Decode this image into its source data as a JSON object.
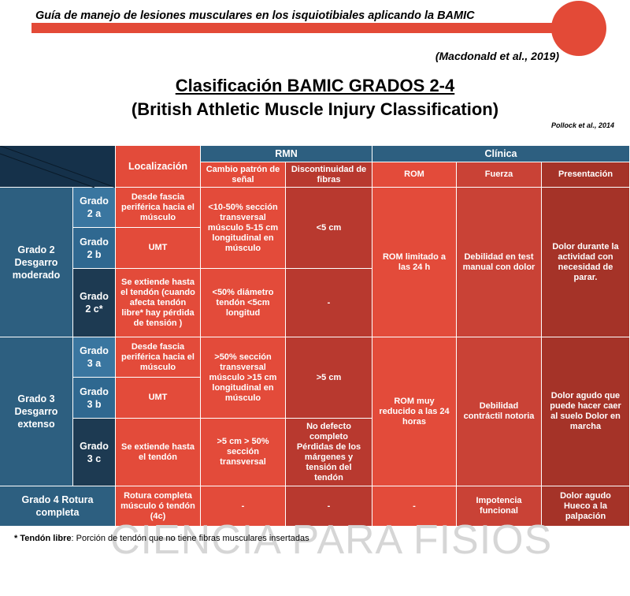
{
  "header": {
    "subtitle": "Guía de manejo de lesiones musculares en los isquiotibiales aplicando la BAMIC",
    "reference": "(Macdonald et al., 2019)",
    "title": "Clasificación BAMIC GRADOS 2-4",
    "title_line2": "(British Athletic Muscle Injury Classification)",
    "source": "Pollock et al., 2014"
  },
  "table": {
    "headers": {
      "location": "Localización",
      "mri": "RMN",
      "mri_change": "Cambio patrón de señal",
      "mri_discontinuity": "Discontinuidad de fibras",
      "clinical": "Clínica",
      "rom": "ROM",
      "strength": "Fuerza",
      "presentation": "Presentación"
    },
    "grade2": {
      "label": "Grado 2 Desgarro moderado",
      "a_label": "Grado 2 a",
      "a_location": "Desde fascia periférica hacia el músculo",
      "ab_mri_change": "<10-50% sección transversal músculo 5-15 cm longitudinal en músculo",
      "ab_mri_discontinuity": "<5 cm",
      "b_label": "Grado 2 b",
      "b_location": "UMT",
      "c_label": "Grado 2 c*",
      "c_location": "Se extiende hasta el tendón (cuando afecta tendón libre* hay pérdida de tensión )",
      "c_mri_change": "<50% diámetro tendón <5cm longitud",
      "c_mri_discontinuity": "-",
      "rom": "ROM limitado a las 24 h",
      "strength": "Debilidad en test manual con dolor",
      "presentation": "Dolor durante la actividad con necesidad de parar."
    },
    "grade3": {
      "label": "Grado 3 Desgarro extenso",
      "a_label": "Grado 3 a",
      "a_location": "Desde fascia periférica hacia el músculo",
      "ab_mri_change": ">50% sección transversal músculo >15 cm longitudinal en músculo",
      "ab_mri_discontinuity": ">5 cm",
      "b_label": "Grado 3 b",
      "b_location": "UMT",
      "c_label": "Grado 3 c",
      "c_location": "Se extiende hasta el tendón",
      "c_mri_change": ">5 cm > 50% sección transversal",
      "c_mri_discontinuity": "No defecto completo Pérdidas de los márgenes y tensión del tendón",
      "rom": "ROM muy reducido a las 24 horas",
      "strength": "Debilidad contráctil notoria",
      "presentation": "Dolor agudo que puede hacer caer al suelo Dolor en marcha"
    },
    "grade4": {
      "label": "Grado 4 Rotura completa",
      "location": "Rotura completa músculo ó tendón (4c)",
      "mri_change": "-",
      "mri_discontinuity": "-",
      "rom": "-",
      "strength": "Impotencia funcional",
      "presentation": "Dolor agudo Hueco a la palpación"
    }
  },
  "footnote": {
    "term": "* Tendón libre",
    "text": ": Porción de tendón que no tiene fibras musculares insertadas"
  },
  "watermark": "CIENCIA PARA FISIOS"
}
